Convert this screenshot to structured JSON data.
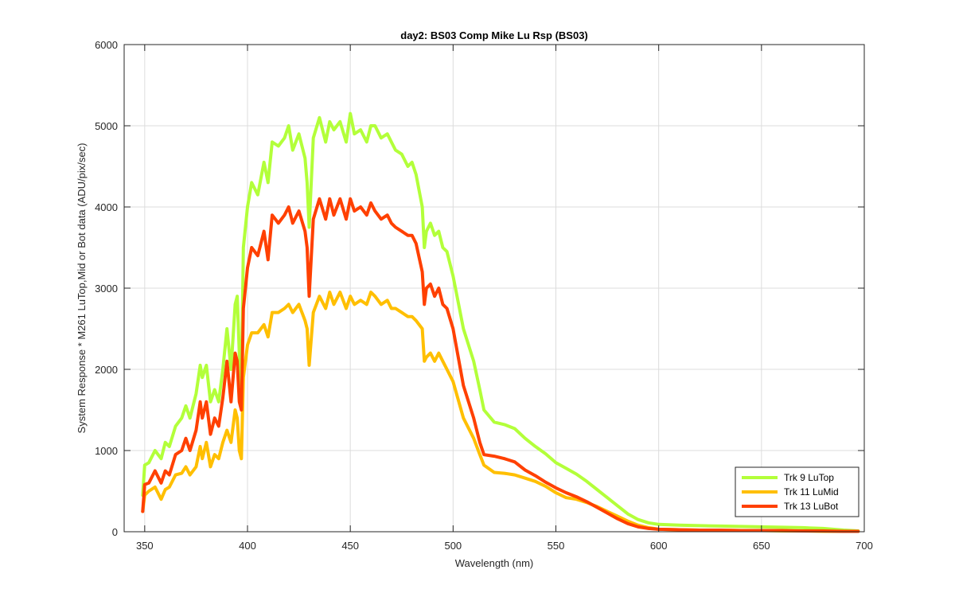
{
  "chart_data": {
    "type": "line",
    "title": "day2: BS03  Comp Mike Lu Rsp (BS03)",
    "xlabel": "Wavelength (nm)",
    "ylabel": "System Response * M261 LuTop,Mid or Bot data  (ADU/pix/sec)",
    "xlim": [
      340,
      700
    ],
    "ylim": [
      0,
      6000
    ],
    "xticks": [
      350,
      400,
      450,
      500,
      550,
      600,
      650,
      700
    ],
    "yticks": [
      0,
      1000,
      2000,
      3000,
      4000,
      5000,
      6000
    ],
    "grid": true,
    "legend_position": "bottom-right",
    "x": [
      349,
      350,
      352,
      355,
      358,
      360,
      362,
      365,
      368,
      370,
      372,
      375,
      377,
      378,
      380,
      382,
      384,
      386,
      388,
      390,
      392,
      394,
      395,
      396,
      397,
      398,
      400,
      402,
      405,
      408,
      410,
      412,
      415,
      418,
      420,
      422,
      425,
      428,
      429,
      430,
      432,
      435,
      438,
      440,
      442,
      445,
      448,
      450,
      452,
      455,
      458,
      460,
      462,
      465,
      468,
      470,
      472,
      475,
      478,
      480,
      482,
      485,
      486,
      487,
      489,
      491,
      493,
      495,
      497,
      500,
      505,
      510,
      513,
      515,
      520,
      525,
      530,
      535,
      540,
      545,
      550,
      555,
      560,
      565,
      570,
      575,
      580,
      585,
      590,
      595,
      600,
      610,
      620,
      630,
      640,
      650,
      660,
      670,
      680,
      690,
      697
    ],
    "series": [
      {
        "name": "Trk 9 LuTop",
        "color": "#b3ff3a",
        "values": [
          450,
          820,
          850,
          1000,
          900,
          1100,
          1050,
          1300,
          1400,
          1550,
          1400,
          1700,
          2050,
          1900,
          2050,
          1600,
          1750,
          1600,
          2000,
          2500,
          2000,
          2800,
          2900,
          2200,
          1800,
          3500,
          4000,
          4300,
          4150,
          4550,
          4300,
          4800,
          4750,
          4850,
          5000,
          4700,
          4900,
          4600,
          4300,
          3750,
          4850,
          5100,
          4800,
          5050,
          4950,
          5050,
          4800,
          5150,
          4900,
          4950,
          4800,
          5000,
          5000,
          4850,
          4900,
          4800,
          4700,
          4650,
          4500,
          4550,
          4400,
          4000,
          3500,
          3700,
          3800,
          3650,
          3700,
          3500,
          3450,
          3150,
          2500,
          2100,
          1750,
          1500,
          1350,
          1320,
          1270,
          1150,
          1050,
          960,
          850,
          780,
          710,
          620,
          520,
          420,
          320,
          220,
          150,
          110,
          90,
          80,
          75,
          70,
          65,
          60,
          55,
          50,
          40,
          20,
          10
        ]
      },
      {
        "name": "Trk 11 LuMid",
        "color": "#ffbf00",
        "values": [
          250,
          450,
          500,
          550,
          400,
          520,
          550,
          700,
          720,
          800,
          700,
          800,
          1050,
          900,
          1100,
          800,
          950,
          900,
          1100,
          1250,
          1100,
          1500,
          1400,
          1000,
          900,
          1900,
          2300,
          2450,
          2450,
          2550,
          2400,
          2700,
          2700,
          2750,
          2800,
          2700,
          2800,
          2600,
          2500,
          2050,
          2700,
          2900,
          2750,
          2950,
          2800,
          2950,
          2750,
          2900,
          2800,
          2850,
          2800,
          2950,
          2900,
          2800,
          2850,
          2750,
          2750,
          2700,
          2650,
          2650,
          2600,
          2500,
          2100,
          2150,
          2200,
          2100,
          2200,
          2100,
          2000,
          1850,
          1400,
          1150,
          950,
          820,
          730,
          720,
          700,
          660,
          620,
          560,
          480,
          420,
          400,
          360,
          310,
          250,
          190,
          130,
          80,
          50,
          30,
          25,
          20,
          20,
          15,
          15,
          10,
          10,
          5,
          5,
          5
        ]
      },
      {
        "name": "Trk 13 LuBot",
        "color": "#ff4000",
        "values": [
          250,
          580,
          600,
          750,
          600,
          750,
          700,
          950,
          1000,
          1150,
          1000,
          1250,
          1600,
          1400,
          1600,
          1200,
          1400,
          1300,
          1650,
          2100,
          1600,
          2200,
          2100,
          1600,
          1500,
          2750,
          3250,
          3500,
          3400,
          3700,
          3350,
          3900,
          3800,
          3900,
          4000,
          3800,
          3950,
          3700,
          3500,
          2900,
          3850,
          4100,
          3850,
          4100,
          3900,
          4100,
          3850,
          4100,
          3950,
          4000,
          3900,
          4050,
          3950,
          3850,
          3900,
          3800,
          3750,
          3700,
          3650,
          3650,
          3550,
          3200,
          2800,
          3000,
          3050,
          2900,
          3000,
          2800,
          2750,
          2500,
          1800,
          1400,
          1100,
          950,
          930,
          900,
          860,
          760,
          690,
          610,
          540,
          480,
          430,
          370,
          300,
          230,
          160,
          100,
          60,
          40,
          30,
          25,
          20,
          20,
          15,
          15,
          15,
          10,
          10,
          5,
          5
        ]
      }
    ]
  }
}
